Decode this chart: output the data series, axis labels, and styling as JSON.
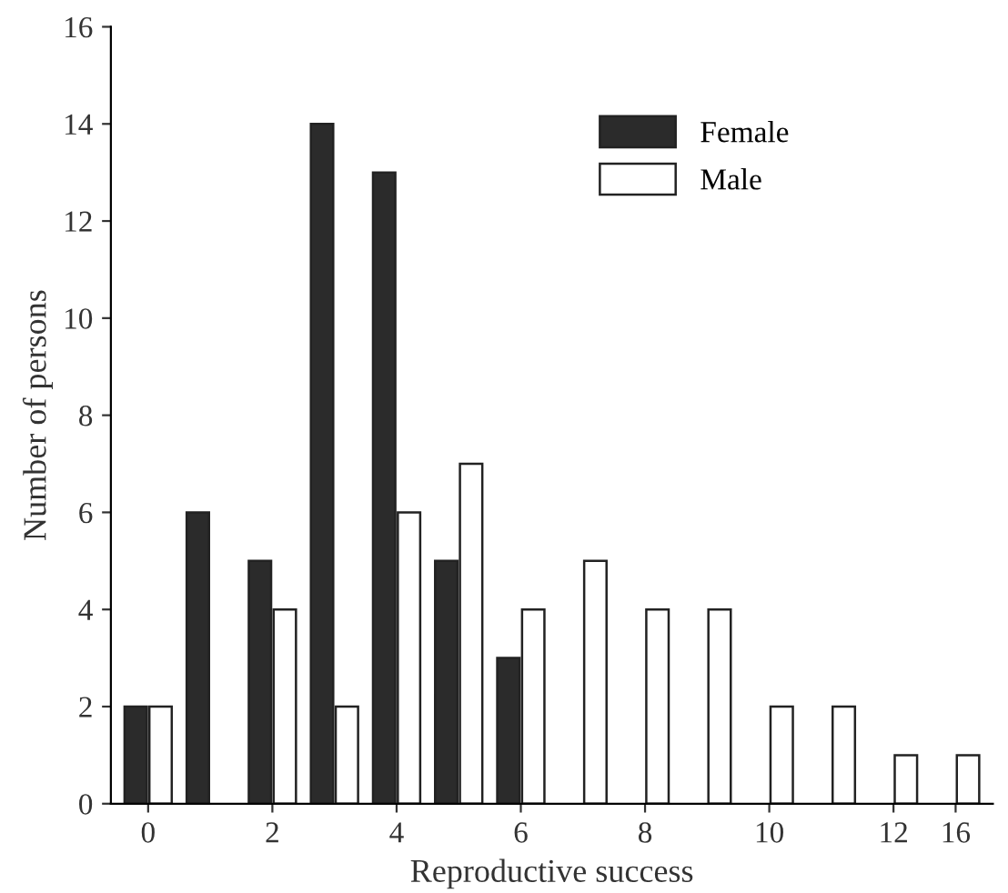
{
  "chart_data": {
    "type": "bar",
    "xlabel": "Reproductive success",
    "ylabel": "Number of persons",
    "categories": [
      "0",
      null,
      "2",
      null,
      "4",
      null,
      "6",
      null,
      "8",
      null,
      "10",
      null,
      "12",
      "16"
    ],
    "series": [
      {
        "name": "Female",
        "color": "#2b2b2b",
        "values": [
          2,
          6,
          5,
          14,
          13,
          5,
          3,
          null,
          null,
          null,
          null,
          null,
          null,
          null
        ]
      },
      {
        "name": "Male",
        "color": "#ffffff",
        "values": [
          2,
          null,
          4,
          2,
          6,
          7,
          4,
          5,
          4,
          4,
          2,
          2,
          1,
          1
        ]
      }
    ],
    "ylim": [
      0,
      16
    ],
    "yticks": [
      0,
      2,
      4,
      6,
      8,
      10,
      12,
      14,
      16
    ],
    "grid": false,
    "legend": "top right"
  }
}
